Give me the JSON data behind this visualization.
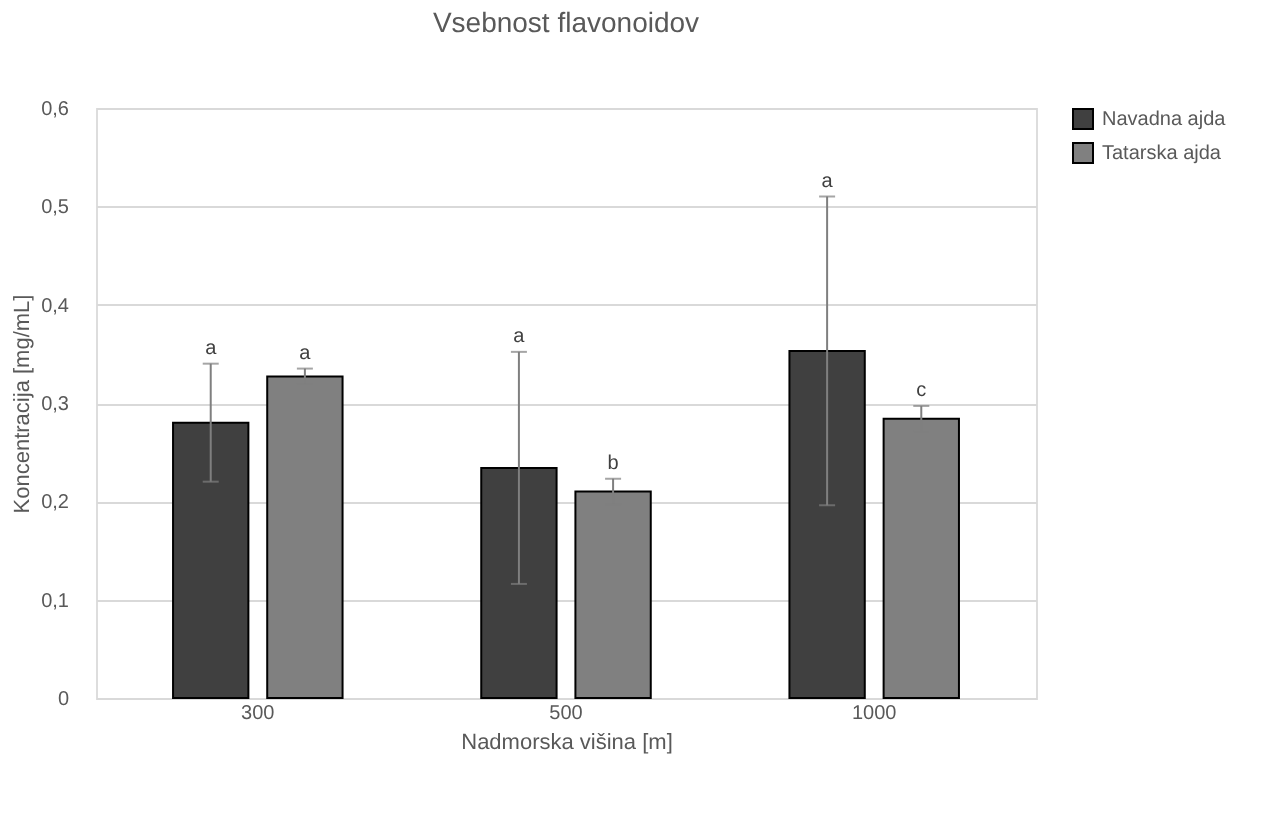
{
  "chart_data": {
    "type": "bar",
    "title": "Vsebnost flavonoidov",
    "xlabel": "Nadmorska višina [m]",
    "ylabel": "Koncentracija [mg/mL]",
    "categories": [
      "300",
      "500",
      "1000"
    ],
    "series": [
      {
        "name": "Navadna ajda",
        "color": "#404040",
        "values": [
          0.28,
          0.234,
          0.353
        ],
        "errors": [
          0.06,
          0.118,
          0.157
        ]
      },
      {
        "name": "Tatarska ajda",
        "color": "#808080",
        "values": [
          0.327,
          0.21,
          0.284
        ],
        "errors": [
          0.008,
          0.013,
          0.013
        ]
      }
    ],
    "ylim": [
      0,
      0.6
    ],
    "yticks": [
      0,
      {
        "value": 0.1,
        "label": "0,1"
      },
      {
        "value": 0.2,
        "label": "0,2"
      },
      {
        "value": 0.3,
        "label": "0,3"
      },
      {
        "value": 0.4,
        "label": "0,4"
      },
      {
        "value": 0.5,
        "label": "0,5"
      },
      {
        "value": 0.6,
        "label": "0,6"
      }
    ],
    "grid": "y",
    "legend": "right",
    "annotations": [
      "a",
      "a",
      "a",
      "b",
      "a",
      "c"
    ]
  }
}
